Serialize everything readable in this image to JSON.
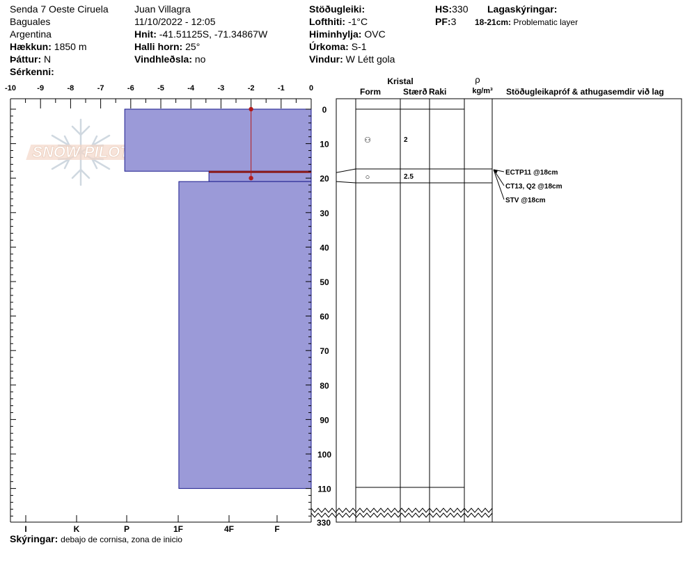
{
  "header": {
    "location": "Senda 7 Oeste Ciruela",
    "region": "Baguales",
    "country": "Argentina",
    "elevation_label": "Hækkun:",
    "elevation_value": "1850 m",
    "aspect_label": "Þáttur:",
    "aspect_value": "N",
    "features_label": "Sérkenni:",
    "observer": "Juan Villagra",
    "datetime": "11/10/2022 - 12:05",
    "coords_label": "Hnit:",
    "coords_value": "-41.51125S, -71.34867W",
    "slope_label": "Halli horn:",
    "slope_value": "25°",
    "wind_loading_label": "Vindhleðsla:",
    "wind_loading_value": "no",
    "stability_label": "Stöðugleiki:",
    "air_temp_label": "Lofthiti:",
    "air_temp_value": "-1°C",
    "sky_label": "Himinhylja:",
    "sky_value": "OVC",
    "precip_label": "Úrkoma:",
    "precip_value": "S-1",
    "wind_label": "Vindur:",
    "wind_value": "W Létt gola",
    "hs_label": "HS:",
    "hs_value": "330",
    "pf_label": "PF:",
    "pf_value": "3",
    "layer_notes_label": "Lagaskýringar:",
    "layer_note_range": "18-21cm:",
    "layer_note_text": "Problematic layer"
  },
  "columns": {
    "crystal": "Kristal",
    "form": "Form",
    "size": "Stærð",
    "moisture": "Raki",
    "rho": "ρ",
    "density_unit": "kg/m³",
    "stability_tests": "Stöðugleikapróf & athugasemdir við lag"
  },
  "footer": {
    "remarks_label": "Skýringar:",
    "remarks_value": "debajo de cornisa, zona de inicio"
  },
  "watermark": "SNOW PILOT",
  "chart_data": {
    "type": "snow-profile",
    "temp_axis": {
      "ticks": [
        "-10",
        "-9",
        "-8",
        "-7",
        "-6",
        "-5",
        "-4",
        "-3",
        "-2",
        "-1",
        "0"
      ],
      "range": [
        -10,
        0
      ]
    },
    "hardness_axis": {
      "ticks": [
        "I",
        "K",
        "P",
        "1F",
        "4F",
        "F"
      ]
    },
    "depth_axis": {
      "ticks": [
        "0",
        "10",
        "20",
        "30",
        "40",
        "50",
        "60",
        "70",
        "80",
        "90",
        "100",
        "110"
      ],
      "max_shown": 110,
      "total_label": "330"
    },
    "layers": [
      {
        "top": 0,
        "bottom": 18,
        "hardness_temp_equiv": -6.2
      },
      {
        "top": 18,
        "bottom": 21,
        "hardness_temp_equiv": -3.4
      },
      {
        "top": 21,
        "bottom": 110,
        "hardness_temp_equiv": -4.4
      }
    ],
    "temperature_profile": [
      {
        "depth": 0,
        "temp": -2
      },
      {
        "depth": 20,
        "temp": -2
      }
    ],
    "problem_layer_depth": 18,
    "crystal_rows": [
      {
        "depth": 9,
        "form": "⚇",
        "size": "2"
      },
      {
        "depth": 20,
        "form": "○",
        "size": "2.5"
      }
    ],
    "tests": [
      "ECTP11 @18cm",
      "CT13, Q2 @18cm",
      "STV @18cm"
    ],
    "colors": {
      "layer_fill": "#9b9ad8",
      "layer_stroke": "#1a1a8c",
      "temp_line": "#b31b1b",
      "problem_layer": "#8b1a1a"
    }
  }
}
